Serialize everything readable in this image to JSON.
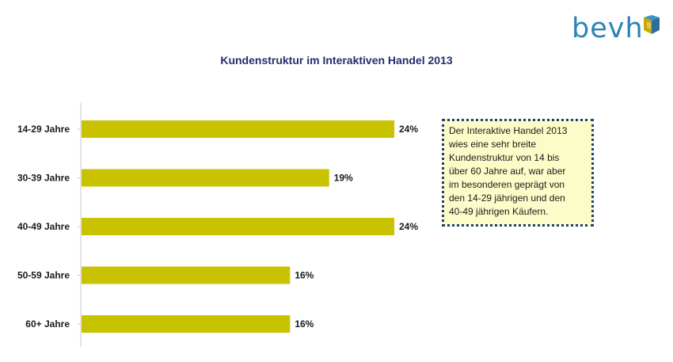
{
  "logo": {
    "text": "bevh"
  },
  "colors": {
    "bar": "#c9c200",
    "axis": "#c8c8c8",
    "title": "#1f2f6b",
    "logo": "#2b84b3"
  },
  "note": {
    "lines": [
      "Der Interaktive Handel 2013",
      "wies eine sehr breite",
      "Kundenstruktur von 14 bis",
      "über 60 Jahre auf, war aber",
      "im besonderen geprägt von",
      "den 14-29 jährigen und den",
      "40-49 jährigen Käufern."
    ]
  },
  "chart_data": {
    "type": "bar",
    "orientation": "horizontal",
    "title": "Kundenstruktur im Interaktiven Handel 2013",
    "categories": [
      "14-29 Jahre",
      "30-39 Jahre",
      "40-49 Jahre",
      "50-59 Jahre",
      "60+ Jahre"
    ],
    "values": [
      24,
      19,
      24,
      16,
      16
    ],
    "value_labels": [
      "24%",
      "19%",
      "24%",
      "16%",
      "16%"
    ],
    "unit": "%",
    "xlim": [
      0,
      24
    ],
    "grid": false,
    "legend": "none"
  }
}
